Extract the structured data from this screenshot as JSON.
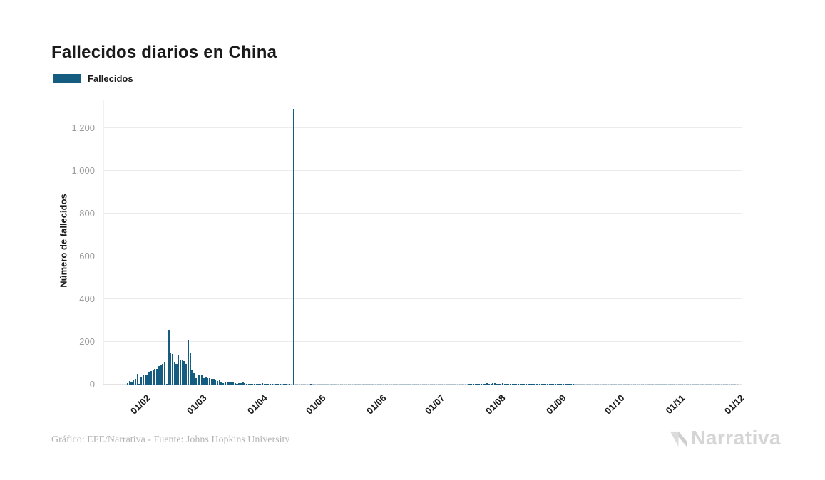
{
  "page": {
    "title": "Fallecidos diarios en China",
    "footer_credit": "Gráfico: EFE/Narrativa - Fuente: Johns Hopkins University",
    "brand": "Narrativa"
  },
  "legend": {
    "label": "Fallecidos",
    "color": "#145c80"
  },
  "chart_data": {
    "type": "bar",
    "title": "Fallecidos diarios en China",
    "series_name": "Fallecidos",
    "ylabel": "Número de fallecidos",
    "xlabel": "",
    "grid": true,
    "legend_position": "top-left",
    "bar_color": "#145c80",
    "zero_bar_color": "rgba(20,92,128,0.25)",
    "grid_color": "#ececec",
    "baseline_color": "#e3e3e3",
    "ylim": [
      0,
      1333
    ],
    "y_ticks": [
      0,
      200,
      400,
      600,
      800,
      1000,
      1200
    ],
    "y_tick_labels": [
      "0",
      "200",
      "400",
      "600",
      "800",
      "1.000",
      "1.200"
    ],
    "x_tick_labels": [
      "01/02",
      "01/03",
      "01/04",
      "01/05",
      "01/06",
      "01/07",
      "01/08",
      "01/09",
      "01/10",
      "01/11",
      "01/12"
    ],
    "x_domain": [
      "2020-01-11",
      "2020-12-03"
    ],
    "data_start_date": "2020-01-23",
    "peak_value": 1290,
    "peak_date": "17/04",
    "values": [
      8,
      16,
      15,
      24,
      26,
      49,
      2,
      38,
      43,
      46,
      45,
      58,
      64,
      66,
      73,
      73,
      86,
      89,
      97,
      108,
      5,
      254,
      150,
      143,
      106,
      98,
      136,
      114,
      118,
      109,
      97,
      210,
      150,
      71,
      52,
      29,
      44,
      47,
      42,
      31,
      38,
      31,
      30,
      28,
      27,
      22,
      17,
      22,
      11,
      7,
      11,
      13,
      10,
      14,
      11,
      8,
      3,
      7,
      6,
      10,
      7,
      4,
      5,
      5,
      3,
      5,
      4,
      2,
      1,
      7,
      4,
      3,
      4,
      3,
      2,
      0,
      2,
      1,
      2,
      0,
      1,
      2,
      0,
      1,
      0,
      1290,
      0,
      0,
      0,
      0,
      0,
      0,
      0,
      0,
      1,
      0,
      0,
      0,
      0,
      0,
      0,
      0,
      0,
      0,
      0,
      0,
      0,
      0,
      0,
      0,
      0,
      0,
      0,
      0,
      0,
      0,
      0,
      0,
      0,
      0,
      0,
      0,
      0,
      0,
      0,
      0,
      0,
      0,
      0,
      0,
      0,
      0,
      0,
      0,
      0,
      0,
      0,
      0,
      0,
      0,
      0,
      0,
      0,
      0,
      0,
      0,
      0,
      0,
      0,
      0,
      0,
      0,
      0,
      0,
      0,
      0,
      0,
      0,
      0,
      0,
      0,
      0,
      0,
      0,
      0,
      0,
      0,
      0,
      0,
      0,
      0,
      0,
      0,
      0,
      0,
      1,
      1,
      2,
      3,
      1,
      2,
      3,
      4,
      5,
      6,
      5,
      4,
      6,
      7,
      5,
      4,
      5,
      6,
      4,
      3,
      5,
      4,
      3,
      2,
      3,
      4,
      5,
      3,
      2,
      3,
      2,
      4,
      3,
      2,
      1,
      2,
      1,
      2,
      1,
      2,
      3,
      2,
      1,
      2,
      1,
      1,
      2,
      2,
      1,
      3,
      2,
      1,
      2,
      1,
      0,
      0,
      0,
      0,
      0,
      0,
      0,
      0,
      0,
      0,
      0,
      0,
      0,
      0,
      0,
      0,
      0,
      0,
      0,
      0,
      0,
      0,
      0,
      0,
      0,
      0,
      0,
      0,
      0,
      0,
      0,
      0,
      0,
      0,
      0,
      0,
      0,
      0,
      0,
      0,
      0,
      0,
      0,
      0,
      0,
      0,
      0,
      0,
      0,
      0,
      0,
      0,
      0,
      0,
      0,
      0,
      0,
      0,
      0,
      0,
      0,
      0,
      0,
      0,
      0,
      0,
      0,
      0,
      0,
      0,
      0,
      0,
      0,
      0,
      0,
      0,
      0,
      0,
      0,
      0,
      0,
      0,
      0,
      0
    ]
  }
}
